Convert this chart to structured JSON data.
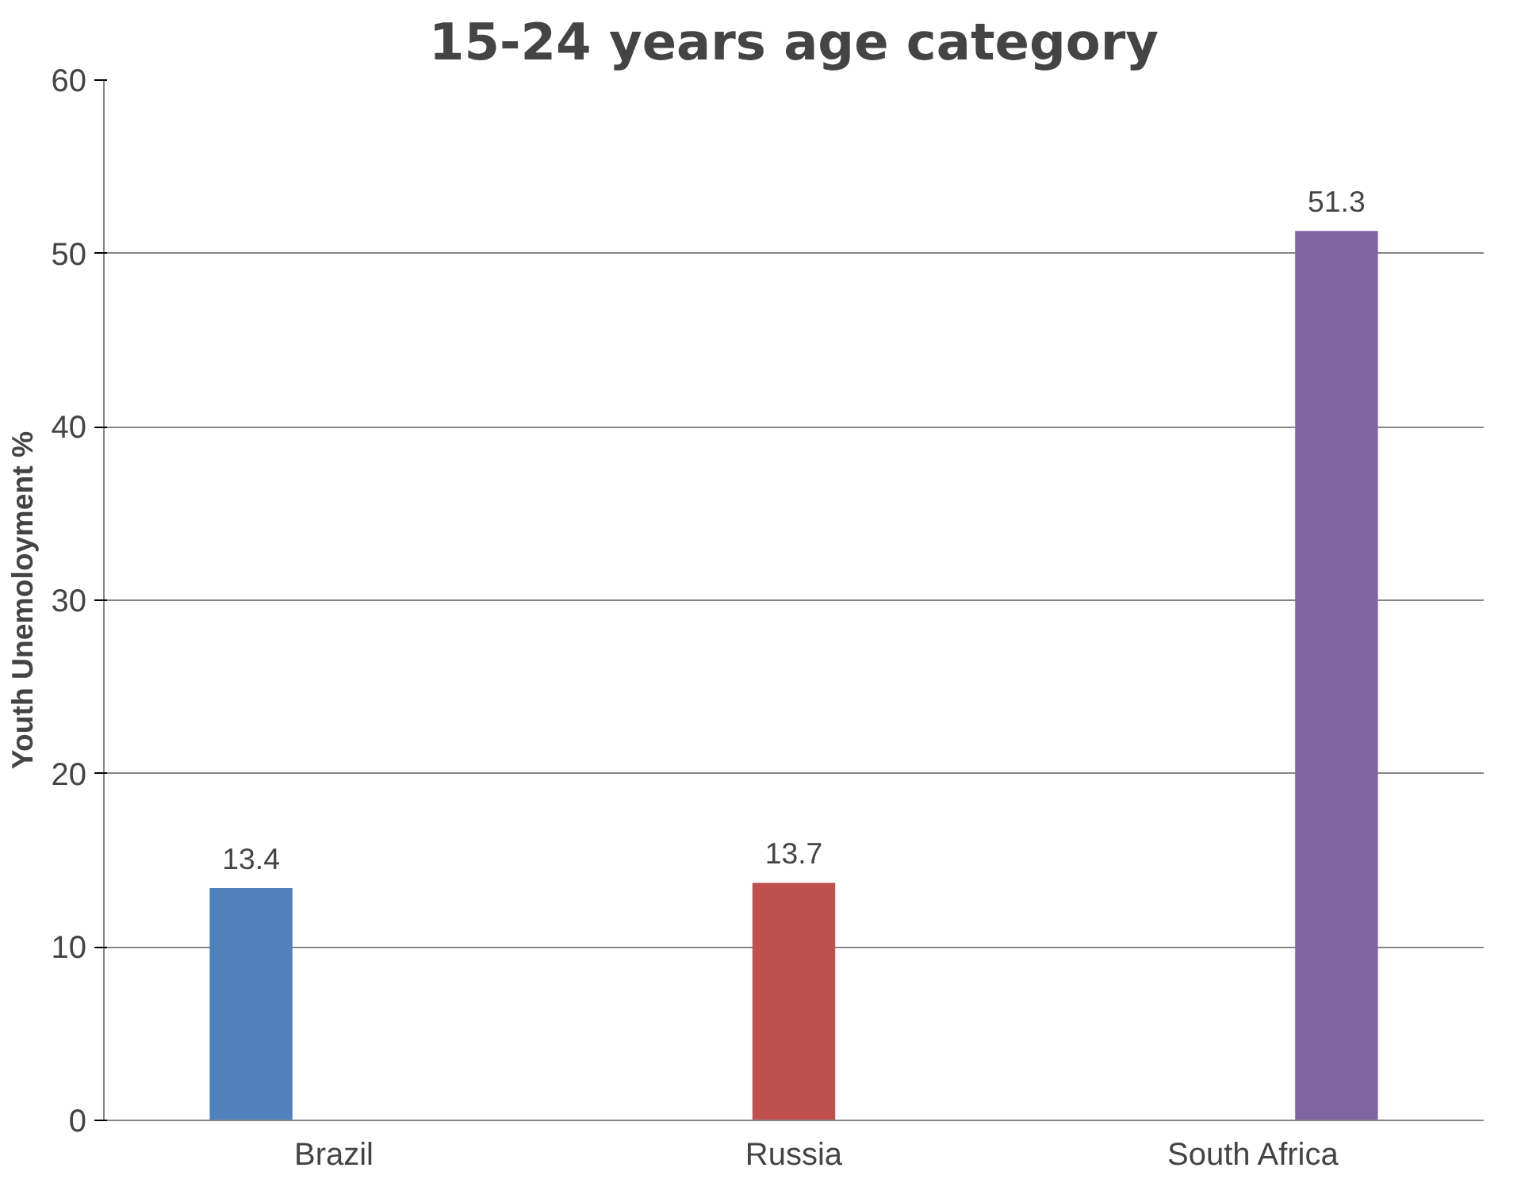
{
  "chart_data": {
    "type": "bar",
    "title": "15-24 years age category",
    "ylabel": "Youth Unemoloyment %",
    "categories": [
      "Brazil",
      "Russia",
      "South Africa"
    ],
    "series": [
      {
        "color": "#4f81bd",
        "values": [
          13.4,
          null,
          null
        ]
      },
      {
        "color": "#c0504d",
        "values": [
          null,
          13.7,
          null
        ]
      },
      {
        "color": "#8064a2",
        "values": [
          null,
          null,
          51.3
        ]
      }
    ],
    "ylim": [
      0,
      60
    ],
    "yticks": [
      0,
      10,
      20,
      30,
      40,
      50,
      60
    ],
    "grid": "y",
    "data_labels": true
  }
}
